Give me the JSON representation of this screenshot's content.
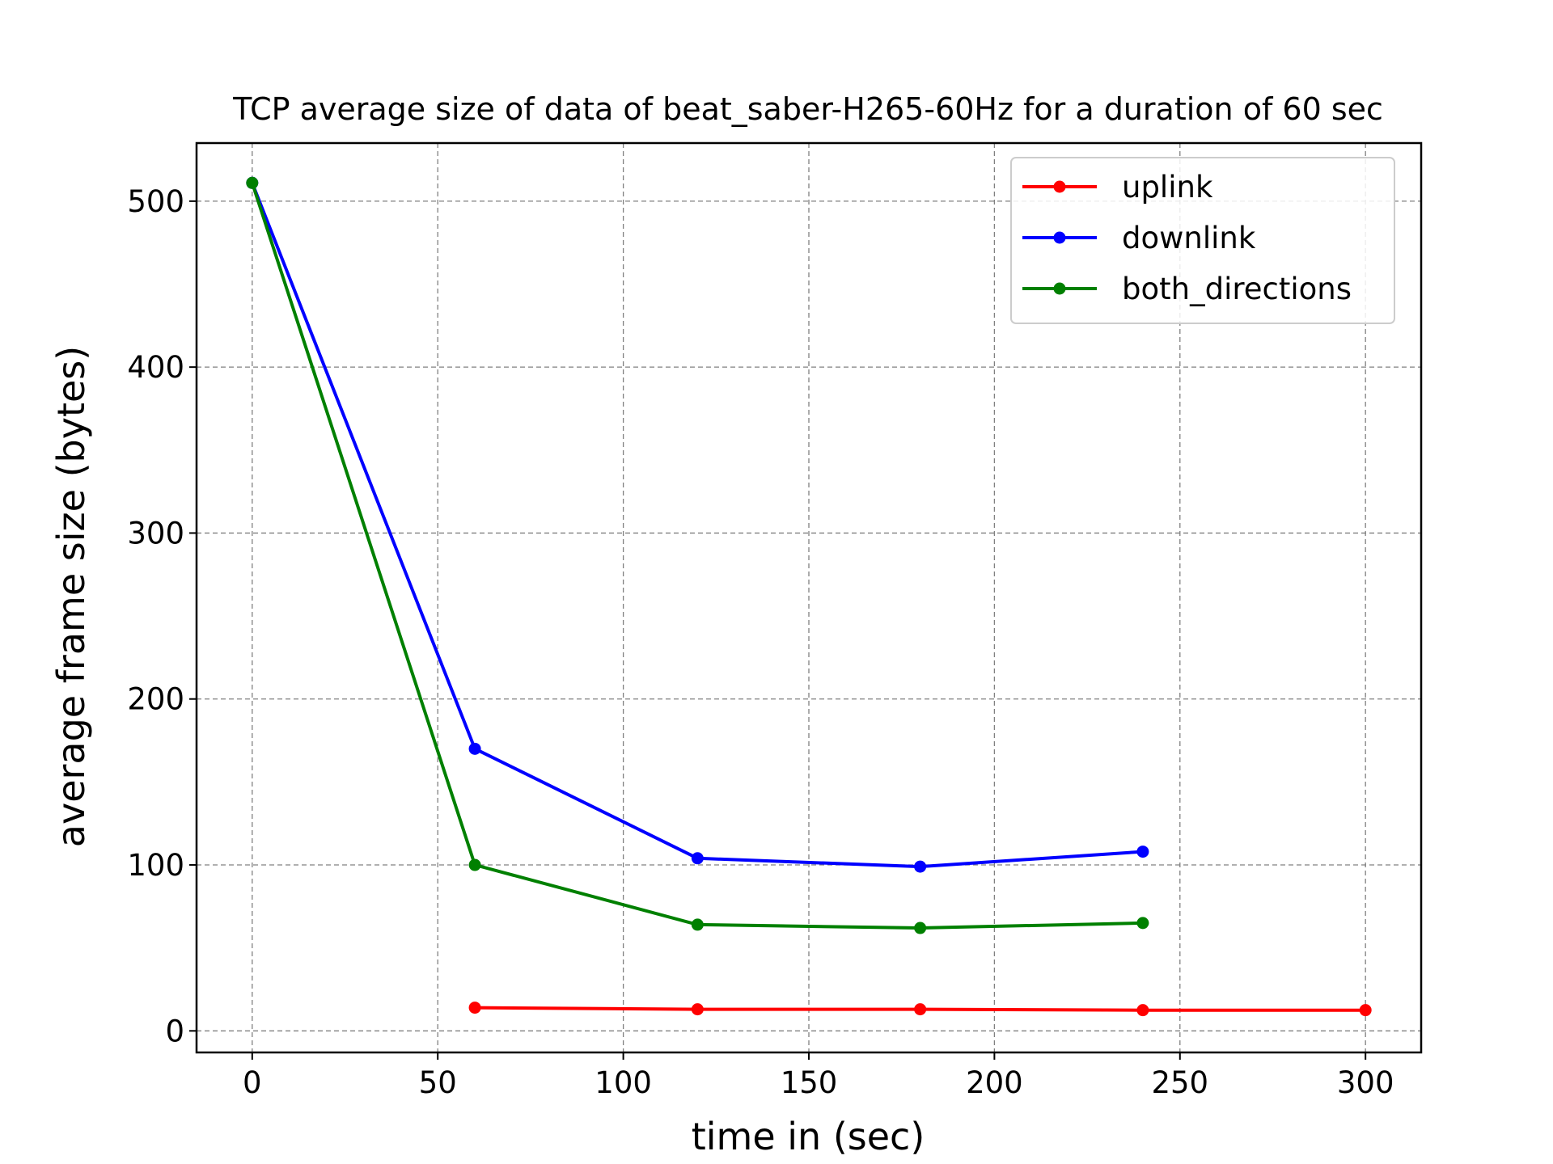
{
  "chart_data": {
    "type": "line",
    "title": "TCP average size of data of beat_saber-H265-60Hz for a duration of 60 sec",
    "xlabel": "time in (sec)",
    "ylabel": "average frame size (bytes)",
    "xlim": [
      -15,
      315
    ],
    "ylim": [
      -13,
      535
    ],
    "xticks": [
      0,
      50,
      100,
      150,
      200,
      250,
      300
    ],
    "yticks": [
      0,
      100,
      200,
      300,
      400,
      500
    ],
    "grid": true,
    "legend_position": "top-right",
    "series": [
      {
        "name": "uplink",
        "color": "#ff0000",
        "x": [
          60,
          120,
          180,
          240,
          300
        ],
        "y": [
          14,
          13,
          13,
          12.5,
          12.5
        ]
      },
      {
        "name": "downlink",
        "color": "#0000ff",
        "x": [
          0,
          60,
          120,
          180,
          240
        ],
        "y": [
          511,
          170,
          104,
          99,
          108
        ]
      },
      {
        "name": "both_directions",
        "color": "#008000",
        "x": [
          0,
          60,
          120,
          180,
          240
        ],
        "y": [
          511,
          100,
          64,
          62,
          65
        ]
      }
    ]
  }
}
